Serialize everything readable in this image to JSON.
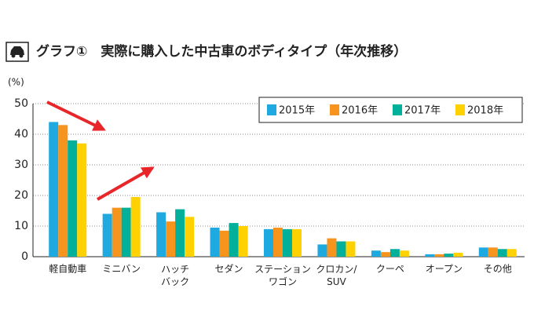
{
  "chart_data": {
    "type": "bar",
    "title": "グラフ①　実際に購入した中古車のボディタイプ（年次推移）",
    "y_label": "(%)",
    "categories": [
      "軽自動車",
      "ミニバン",
      "ハッチ\nバック",
      "セダン",
      "ステーション\nワゴン",
      "クロカン/\nSUV",
      "クーペ",
      "オープン",
      "その他"
    ],
    "series": [
      {
        "name": "2015年",
        "color": "#1fa9e1",
        "values": [
          44,
          14,
          14.5,
          9.5,
          9,
          4,
          2,
          0.8,
          3
        ]
      },
      {
        "name": "2016年",
        "color": "#f7941d",
        "values": [
          43,
          16,
          11.5,
          8.5,
          9.5,
          6,
          1.5,
          0.8,
          3
        ]
      },
      {
        "name": "2017年",
        "color": "#00b09b",
        "values": [
          38,
          16,
          15.5,
          11,
          9,
          5,
          2.5,
          1,
          2.5
        ]
      },
      {
        "name": "2018年",
        "color": "#ffd100",
        "values": [
          37,
          19.5,
          13,
          10,
          9,
          5,
          2,
          1.3,
          2.5
        ]
      }
    ],
    "ylim": [
      0,
      50
    ],
    "yticks": [
      0,
      10,
      20,
      30,
      40,
      50
    ],
    "grid": true
  }
}
